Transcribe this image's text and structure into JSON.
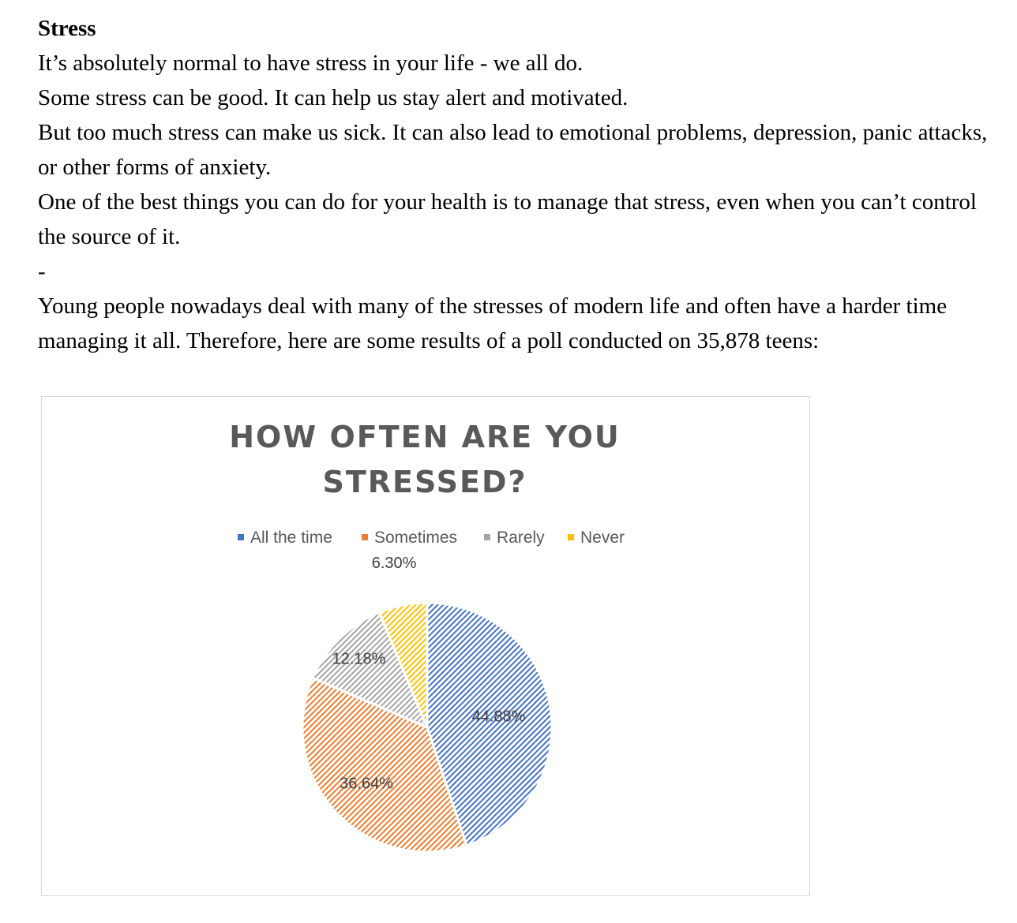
{
  "article": {
    "heading": "Stress",
    "lines": [
      "It’s absolutely normal to have stress in your life - we all do.",
      "Some stress can be good. It can help us stay alert and motivated.",
      "But too much stress can make us sick. It can also lead to emotional problems, depression, panic attacks, or other forms of anxiety.",
      "One of the best things you can do for your health is to manage that stress, even when you can’t control the source of it.",
      "-",
      "Young people nowadays deal with many of the stresses of modern life and often have a harder time managing it all. Therefore, here are some results of a poll conducted on 35,878 teens:"
    ]
  },
  "chart_data": {
    "type": "pie",
    "title_lines": [
      "HOW OFTEN ARE YOU",
      "STRESSED?"
    ],
    "legend_placement": "top",
    "slices": [
      {
        "name": "All the time",
        "value": 44.88,
        "label": "44.88%",
        "color": "#4472C4"
      },
      {
        "name": "Sometimes",
        "value": 36.64,
        "label": "36.64%",
        "color": "#ED7D31"
      },
      {
        "name": "Rarely",
        "value": 12.18,
        "label": "12.18%",
        "color": "#A5A5A5"
      },
      {
        "name": "Never",
        "value": 6.3,
        "label": "6.30%",
        "color": "#FFC000"
      }
    ],
    "fill_pattern": "diagonal-hatch"
  }
}
